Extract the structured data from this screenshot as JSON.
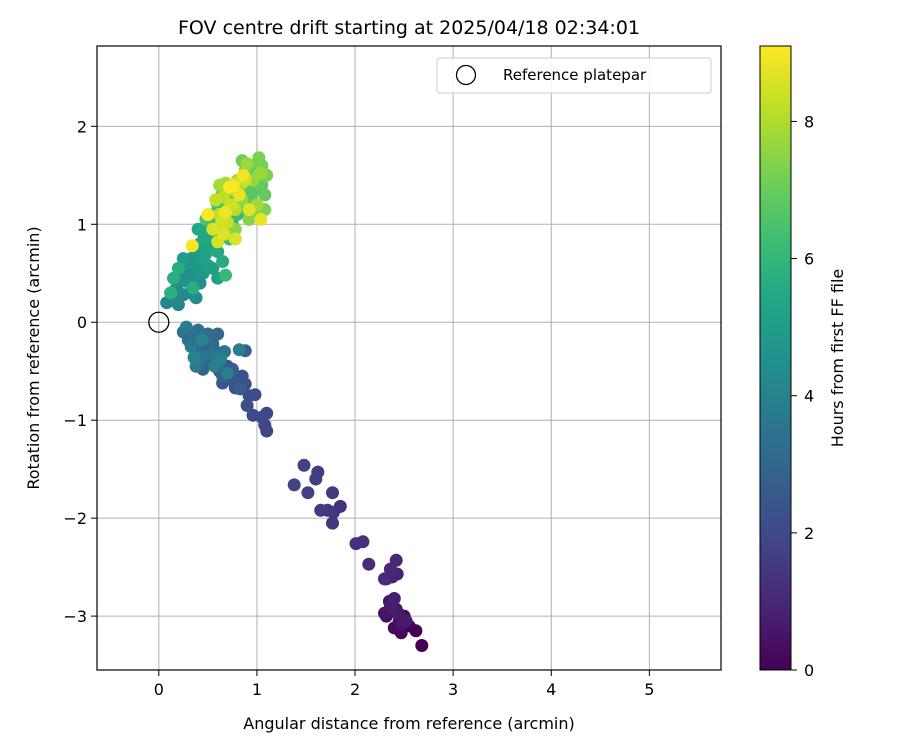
{
  "chart_data": {
    "type": "scatter",
    "title": "FOV centre drift starting at 2025/04/18 02:34:01",
    "xlabel": "Angular distance from reference (arcmin)",
    "ylabel": "Rotation from reference (arcmin)",
    "xlim": [
      -0.63,
      5.73
    ],
    "ylim": [
      -3.55,
      2.82
    ],
    "xticks": [
      0,
      1,
      2,
      3,
      4,
      5
    ],
    "yticks": [
      -3,
      -2,
      -1,
      0,
      1,
      2
    ],
    "grid": true,
    "legend": {
      "label": "Reference platepar",
      "placement": "top-right"
    },
    "reference_point": {
      "x": 0,
      "y": 0
    },
    "colorbar": {
      "label": "Hours from first FF file",
      "colormap": "viridis",
      "range": [
        0,
        9.1
      ],
      "ticks": [
        0,
        2,
        4,
        6,
        8
      ]
    },
    "series": [
      {
        "points": [
          [
            2.68,
            -3.3
          ],
          [
            2.62,
            -3.15
          ],
          [
            2.55,
            -3.1
          ],
          [
            2.5,
            -3.0
          ],
          [
            2.47,
            -3.17
          ],
          [
            2.4,
            -3.12
          ],
          [
            2.45,
            -3.05
          ],
          [
            2.38,
            -2.95
          ],
          [
            2.32,
            -3.0
          ],
          [
            2.42,
            -2.93
          ],
          [
            2.35,
            -2.85
          ],
          [
            2.3,
            -2.97
          ],
          [
            2.48,
            -3.08
          ],
          [
            2.44,
            -2.97
          ],
          [
            2.52,
            -3.05
          ],
          [
            2.36,
            -2.9
          ],
          [
            2.4,
            -2.82
          ],
          [
            2.43,
            -2.57
          ],
          [
            2.38,
            -2.6
          ],
          [
            2.32,
            -2.62
          ],
          [
            2.37,
            -2.55
          ],
          [
            2.42,
            -2.43
          ],
          [
            2.36,
            -2.52
          ],
          [
            2.3,
            -2.62
          ],
          [
            2.14,
            -2.47
          ],
          [
            2.08,
            -2.24
          ],
          [
            2.01,
            -2.26
          ],
          [
            1.85,
            -1.88
          ],
          [
            1.78,
            -1.94
          ],
          [
            1.77,
            -2.05
          ],
          [
            1.72,
            -1.92
          ],
          [
            1.77,
            -1.74
          ],
          [
            1.65,
            -1.92
          ],
          [
            1.62,
            -1.53
          ],
          [
            1.6,
            -1.6
          ],
          [
            1.52,
            -1.74
          ],
          [
            1.48,
            -1.46
          ],
          [
            1.38,
            -1.66
          ],
          [
            1.1,
            -1.11
          ],
          [
            1.08,
            -1.05
          ],
          [
            1.1,
            -0.93
          ],
          [
            1.05,
            -0.97
          ],
          [
            0.96,
            -0.95
          ],
          [
            0.98,
            -0.74
          ],
          [
            0.92,
            -0.75
          ],
          [
            0.9,
            -0.85
          ],
          [
            0.88,
            -0.63
          ],
          [
            0.8,
            -0.6
          ],
          [
            0.85,
            -0.55
          ],
          [
            0.78,
            -0.67
          ],
          [
            0.72,
            -0.58
          ],
          [
            0.65,
            -0.62
          ],
          [
            0.62,
            -0.5
          ],
          [
            0.7,
            -0.45
          ],
          [
            0.88,
            -0.29
          ],
          [
            0.75,
            -0.48
          ],
          [
            0.83,
            -0.68
          ],
          [
            0.65,
            -0.55
          ],
          [
            0.58,
            -0.3
          ],
          [
            0.52,
            -0.4
          ],
          [
            0.48,
            -0.28
          ],
          [
            0.45,
            -0.48
          ],
          [
            0.4,
            -0.42
          ],
          [
            0.55,
            -0.22
          ],
          [
            0.6,
            -0.12
          ],
          [
            0.5,
            -0.12
          ],
          [
            0.42,
            -0.2
          ],
          [
            0.38,
            -0.32
          ],
          [
            0.35,
            -0.15
          ],
          [
            0.3,
            -0.18
          ],
          [
            0.25,
            -0.1
          ],
          [
            0.4,
            -0.08
          ],
          [
            0.62,
            -0.4
          ],
          [
            0.67,
            -0.3
          ],
          [
            0.55,
            -0.32
          ],
          [
            0.45,
            -0.35
          ],
          [
            0.38,
            -0.45
          ],
          [
            0.33,
            -0.25
          ],
          [
            0.28,
            -0.05
          ],
          [
            0.82,
            -0.28
          ],
          [
            0.7,
            -0.52
          ],
          [
            0.57,
            -0.45
          ],
          [
            0.63,
            -0.37
          ],
          [
            0.36,
            -0.36
          ],
          [
            0.44,
            -0.18
          ],
          [
            0.08,
            0.2
          ],
          [
            0.15,
            0.22
          ],
          [
            0.2,
            0.18
          ],
          [
            0.25,
            0.28
          ],
          [
            0.32,
            0.3
          ],
          [
            0.38,
            0.25
          ],
          [
            0.42,
            0.4
          ],
          [
            0.18,
            0.35
          ],
          [
            0.22,
            0.45
          ],
          [
            0.3,
            0.5
          ],
          [
            0.27,
            0.42
          ],
          [
            0.35,
            0.43
          ],
          [
            0.4,
            0.55
          ],
          [
            0.45,
            0.5
          ],
          [
            0.28,
            0.6
          ],
          [
            0.33,
            0.65
          ],
          [
            0.38,
            0.7
          ],
          [
            0.25,
            0.65
          ],
          [
            0.45,
            0.62
          ],
          [
            0.5,
            0.58
          ],
          [
            0.55,
            0.55
          ],
          [
            0.6,
            0.45
          ],
          [
            0.48,
            0.7
          ],
          [
            0.52,
            0.78
          ],
          [
            0.42,
            0.8
          ],
          [
            0.46,
            0.85
          ],
          [
            0.55,
            0.9
          ],
          [
            0.5,
            0.95
          ],
          [
            0.4,
            0.95
          ],
          [
            0.6,
            0.72
          ],
          [
            0.65,
            0.62
          ],
          [
            0.2,
            0.55
          ],
          [
            0.15,
            0.45
          ],
          [
            0.35,
            0.35
          ],
          [
            0.12,
            0.3
          ],
          [
            0.58,
            1.0
          ],
          [
            0.62,
            0.95
          ],
          [
            0.7,
            1.05
          ],
          [
            0.75,
            1.0
          ],
          [
            0.65,
            1.15
          ],
          [
            0.55,
            1.1
          ],
          [
            0.68,
            0.48
          ],
          [
            0.72,
            0.85
          ],
          [
            0.8,
            1.1
          ],
          [
            0.85,
            1.15
          ],
          [
            0.78,
            1.25
          ],
          [
            0.72,
            1.3
          ],
          [
            0.65,
            1.32
          ],
          [
            0.6,
            1.2
          ],
          [
            0.52,
            1.08
          ],
          [
            0.48,
            1.05
          ],
          [
            0.9,
            1.2
          ],
          [
            0.95,
            1.25
          ],
          [
            0.88,
            1.35
          ],
          [
            0.82,
            1.4
          ],
          [
            0.98,
            1.35
          ],
          [
            1.02,
            1.45
          ],
          [
            1.05,
            1.4
          ],
          [
            1.08,
            1.3
          ],
          [
            1.0,
            1.55
          ],
          [
            0.95,
            1.6
          ],
          [
            0.92,
            1.5
          ],
          [
            0.85,
            1.65
          ],
          [
            0.88,
            1.55
          ],
          [
            1.05,
            1.6
          ],
          [
            1.02,
            1.68
          ],
          [
            1.1,
            1.5
          ],
          [
            1.08,
            1.15
          ],
          [
            0.98,
            1.1
          ],
          [
            0.92,
            1.05
          ],
          [
            0.78,
            0.95
          ],
          [
            0.7,
            0.9
          ],
          [
            0.85,
            1.25
          ],
          [
            0.96,
            1.45
          ],
          [
            1.04,
            1.52
          ],
          [
            0.9,
            1.62
          ],
          [
            1.0,
            1.2
          ],
          [
            0.62,
            1.4
          ],
          [
            0.68,
            1.42
          ],
          [
            0.75,
            1.35
          ],
          [
            0.8,
            1.45
          ],
          [
            0.85,
            1.42
          ],
          [
            0.78,
            1.15
          ],
          [
            0.72,
            1.18
          ],
          [
            0.66,
            1.28
          ],
          [
            0.58,
            1.25
          ],
          [
            0.62,
            1.1
          ],
          [
            0.7,
            1.02
          ],
          [
            0.88,
            1.45
          ],
          [
            0.74,
            1.2
          ],
          [
            0.64,
            1.02
          ],
          [
            0.6,
            0.82
          ],
          [
            0.55,
            0.95
          ],
          [
            0.78,
            0.85
          ],
          [
            0.66,
            0.9
          ],
          [
            0.92,
            1.15
          ],
          [
            1.04,
            1.05
          ],
          [
            0.82,
            1.3
          ],
          [
            0.68,
            1.12
          ],
          [
            0.86,
            1.5
          ],
          [
            0.76,
            1.4
          ],
          [
            0.34,
            0.78
          ],
          [
            0.5,
            1.1
          ],
          [
            0.72,
            1.38
          ]
        ]
      }
    ]
  }
}
